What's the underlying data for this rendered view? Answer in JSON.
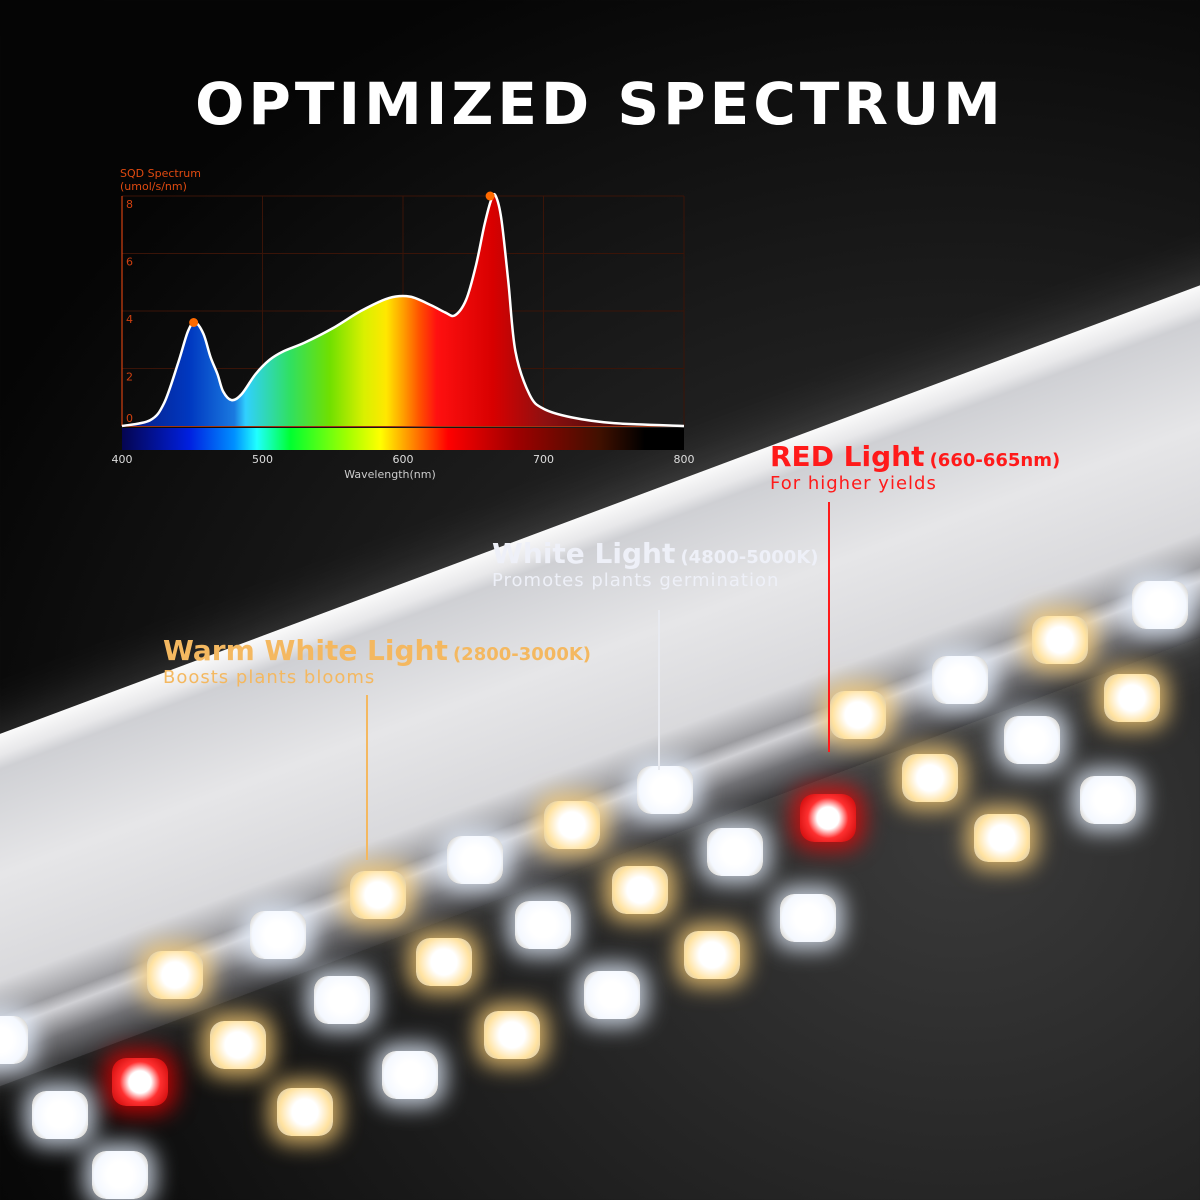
{
  "title": "OPTIMIZED SPECTRUM",
  "chart_data": {
    "type": "area",
    "title": "SQD Spectrum",
    "ylabel": "(umol/s/nm)",
    "xlabel": "Wavelength(nm)",
    "xlim": [
      400,
      800
    ],
    "ylim": [
      0,
      8
    ],
    "xticks": [
      "400",
      "500",
      "600",
      "700",
      "800"
    ],
    "yticks": [
      "0",
      "2",
      "4",
      "6",
      "8"
    ],
    "grid": true,
    "x": [
      400,
      420,
      430,
      440,
      447,
      452,
      458,
      463,
      468,
      472,
      478,
      485,
      495,
      505,
      515,
      530,
      550,
      570,
      590,
      605,
      620,
      630,
      637,
      645,
      652,
      658,
      663,
      666,
      670,
      675,
      680,
      690,
      700,
      720,
      750,
      800
    ],
    "y": [
      0,
      0.2,
      0.8,
      2.2,
      3.3,
      3.6,
      3.2,
      2.4,
      1.8,
      1.2,
      0.9,
      1.1,
      1.8,
      2.3,
      2.6,
      2.9,
      3.4,
      4.0,
      4.45,
      4.5,
      4.2,
      3.95,
      3.85,
      4.4,
      5.6,
      7.0,
      7.9,
      8.0,
      7.2,
      5.0,
      2.6,
      1.1,
      0.6,
      0.3,
      0.1,
      0.0
    ],
    "peaks": [
      {
        "x": 451,
        "y": 3.6
      },
      {
        "x": 662,
        "y": 8.0
      }
    ],
    "peak_color": "#ff6a00",
    "axis_color": "#d04010"
  },
  "callouts": {
    "red": {
      "title": "RED Light",
      "range": "(660-665nm)",
      "sub": "For higher yields",
      "color": "#ff1a1a"
    },
    "white": {
      "title": "White Light",
      "range": "(4800-5000K)",
      "sub": "Promotes plants germination",
      "color": "#eef0f8"
    },
    "warm": {
      "title": "Warm White Light",
      "range": "(2800-3000K)",
      "sub": "Boosts plants blooms",
      "color": "#f4b860"
    }
  }
}
